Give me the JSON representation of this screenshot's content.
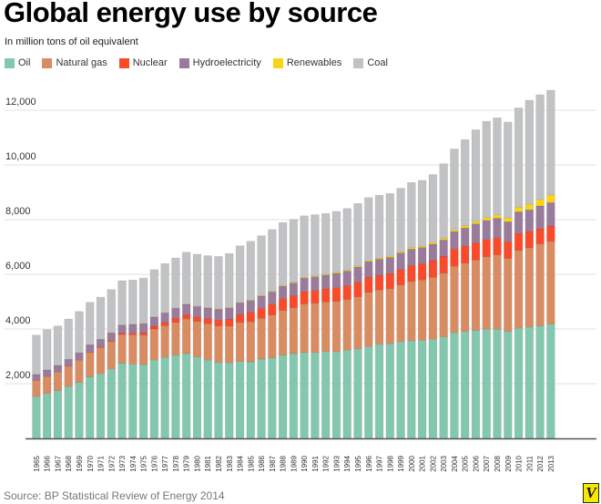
{
  "chart_data": {
    "type": "bar",
    "stacked": true,
    "title": "Global energy use by source",
    "subtitle": "In million tons of oil equivalent",
    "xlabel": "",
    "ylabel": "",
    "ylim": [
      0,
      12000
    ],
    "yticks": [
      2000,
      4000,
      6000,
      8000,
      10000,
      12000
    ],
    "ytick_labels": [
      "2,000",
      "4,000",
      "6,000",
      "8,000",
      "10,000",
      "12,000"
    ],
    "grid": true,
    "legend": "top-left",
    "categories": [
      "1965",
      "1966",
      "1967",
      "1968",
      "1969",
      "1970",
      "1971",
      "1972",
      "1973",
      "1974",
      "1975",
      "1976",
      "1977",
      "1978",
      "1979",
      "1980",
      "1981",
      "1982",
      "1983",
      "1984",
      "1985",
      "1986",
      "1987",
      "1988",
      "1989",
      "1990",
      "1991",
      "1992",
      "1993",
      "1994",
      "1995",
      "1996",
      "1997",
      "1998",
      "1999",
      "2000",
      "2001",
      "2002",
      "2003",
      "2004",
      "2005",
      "2006",
      "2007",
      "2008",
      "2009",
      "2010",
      "2011",
      "2012",
      "2013"
    ],
    "series": [
      {
        "name": "Oil",
        "color": "#83c8ae",
        "values": [
          1530,
          1640,
          1750,
          1900,
          2050,
          2250,
          2370,
          2540,
          2750,
          2720,
          2700,
          2870,
          2960,
          3050,
          3100,
          2980,
          2870,
          2780,
          2760,
          2810,
          2800,
          2900,
          2950,
          3050,
          3100,
          3150,
          3140,
          3180,
          3170,
          3230,
          3270,
          3360,
          3440,
          3460,
          3540,
          3570,
          3590,
          3630,
          3710,
          3870,
          3910,
          3950,
          4000,
          3990,
          3910,
          4030,
          4070,
          4120,
          4185
        ]
      },
      {
        "name": "Natural gas",
        "color": "#d98c62",
        "values": [
          590,
          630,
          680,
          740,
          810,
          890,
          950,
          1000,
          1050,
          1070,
          1080,
          1130,
          1160,
          1200,
          1270,
          1300,
          1320,
          1330,
          1350,
          1430,
          1470,
          1490,
          1560,
          1630,
          1680,
          1770,
          1800,
          1810,
          1840,
          1850,
          1910,
          1990,
          1990,
          2020,
          2070,
          2170,
          2200,
          2260,
          2340,
          2430,
          2500,
          2570,
          2650,
          2720,
          2670,
          2850,
          2900,
          2990,
          3020
        ]
      },
      {
        "name": "Nuclear",
        "color": "#f94a2a",
        "values": [
          6,
          8,
          9,
          12,
          14,
          18,
          25,
          36,
          47,
          56,
          84,
          100,
          125,
          145,
          150,
          160,
          190,
          210,
          240,
          290,
          340,
          370,
          400,
          430,
          440,
          450,
          470,
          480,
          500,
          510,
          530,
          545,
          540,
          550,
          570,
          585,
          600,
          610,
          600,
          625,
          627,
          635,
          622,
          620,
          615,
          626,
          600,
          560,
          563
        ]
      },
      {
        "name": "Hydroelectricity",
        "color": "#9a7b9b",
        "values": [
          210,
          225,
          230,
          240,
          255,
          265,
          275,
          285,
          295,
          320,
          330,
          335,
          340,
          365,
          380,
          385,
          390,
          400,
          415,
          425,
          430,
          440,
          445,
          455,
          460,
          490,
          500,
          500,
          525,
          530,
          560,
          570,
          580,
          590,
          600,
          600,
          590,
          600,
          600,
          640,
          660,
          690,
          700,
          720,
          730,
          780,
          790,
          830,
          856
        ]
      },
      {
        "name": "Renewables",
        "color": "#f6d41a",
        "values": [
          2,
          2,
          2,
          3,
          3,
          3,
          4,
          4,
          5,
          5,
          6,
          6,
          7,
          8,
          9,
          10,
          12,
          14,
          16,
          18,
          20,
          22,
          24,
          26,
          28,
          30,
          32,
          34,
          36,
          38,
          40,
          42,
          44,
          46,
          48,
          52,
          55,
          60,
          65,
          72,
          82,
          92,
          105,
          125,
          145,
          170,
          205,
          240,
          280
        ]
      },
      {
        "name": "Coal",
        "color": "#c1c2c4",
        "values": [
          1440,
          1470,
          1440,
          1470,
          1510,
          1550,
          1540,
          1580,
          1620,
          1620,
          1660,
          1730,
          1800,
          1830,
          1900,
          1900,
          1900,
          1920,
          1980,
          2070,
          2150,
          2190,
          2260,
          2300,
          2300,
          2250,
          2240,
          2220,
          2230,
          2250,
          2280,
          2300,
          2300,
          2290,
          2320,
          2380,
          2400,
          2490,
          2730,
          2950,
          3150,
          3350,
          3520,
          3550,
          3500,
          3630,
          3800,
          3830,
          3830
        ]
      }
    ],
    "source": "Source: BP Statistical Review of Energy 2014"
  },
  "logo": "V"
}
